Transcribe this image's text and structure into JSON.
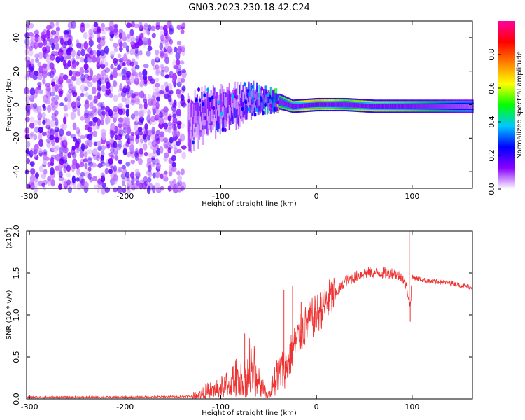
{
  "title": "GN03.2023.230.18.42.C24",
  "chart_data": [
    {
      "type": "heatmap",
      "xlabel": "Height of straight line (km)",
      "ylabel": "Frequency (Hz)",
      "xlim": [
        -303,
        163
      ],
      "ylim": [
        -50,
        50
      ],
      "xticks": [
        -300,
        -200,
        -100,
        0,
        100
      ],
      "yticks": [
        -40,
        -20,
        0,
        20,
        40
      ],
      "colorbar": {
        "label": "Normalized spectral amplitude",
        "range": [
          0,
          1
        ],
        "ticks": [
          "0.0",
          "0.2",
          "0.4",
          "0.6",
          "0.8"
        ],
        "tick_values": [
          0.0,
          0.2,
          0.4,
          0.6,
          0.8
        ],
        "colormap": [
          "#ffffff",
          "#8a00ff",
          "#0000ff",
          "#00c8ff",
          "#00ff00",
          "#ffff00",
          "#ff8000",
          "#ff0000",
          "#ff00a0"
        ]
      },
      "noise_region": {
        "x_range": [
          -303,
          -138
        ],
        "amplitude": 0.1
      },
      "ridge": [
        {
          "x": -135,
          "freq": -12,
          "amplitude": 0.2,
          "bandwidth": 14
        },
        {
          "x": -120,
          "freq": -6,
          "amplitude": 0.22,
          "bandwidth": 14
        },
        {
          "x": -100,
          "freq": -3,
          "amplitude": 0.25,
          "bandwidth": 12
        },
        {
          "x": -80,
          "freq": 0,
          "amplitude": 0.3,
          "bandwidth": 10
        },
        {
          "x": -60,
          "freq": 4,
          "amplitude": 0.45,
          "bandwidth": 8
        },
        {
          "x": -40,
          "freq": 2,
          "amplitude": 0.7,
          "bandwidth": 6
        },
        {
          "x": -25,
          "freq": -1,
          "amplitude": 0.8,
          "bandwidth": 5
        },
        {
          "x": 0,
          "freq": 0,
          "amplitude": 0.95,
          "bandwidth": 5
        },
        {
          "x": 30,
          "freq": 0,
          "amplitude": 0.75,
          "bandwidth": 5
        },
        {
          "x": 60,
          "freq": -1,
          "amplitude": 0.85,
          "bandwidth": 5
        },
        {
          "x": 90,
          "freq": -1,
          "amplitude": 0.8,
          "bandwidth": 5
        },
        {
          "x": 120,
          "freq": -1,
          "amplitude": 0.7,
          "bandwidth": 5
        },
        {
          "x": 163,
          "freq": -1,
          "amplitude": 0.5,
          "bandwidth": 5
        }
      ]
    },
    {
      "type": "line",
      "xlabel": "Height of straight line (km)",
      "ylabel": "SNR (10 * v/v)",
      "multiplier_label": "(x10",
      "multiplier_exponent": "4",
      "xlim": [
        -303,
        163
      ],
      "ylim": [
        0,
        2.0
      ],
      "xticks": [
        -300,
        -200,
        -100,
        0,
        100
      ],
      "yticks": [
        "0.0",
        "0.5",
        "1.0",
        "1.5",
        "2.0"
      ],
      "ytick_values": [
        0.0,
        0.5,
        1.0,
        1.5,
        2.0
      ],
      "color": "#ee3333",
      "series": [
        {
          "x": [
            -303,
            -200,
            -130,
            -120,
            -100,
            -80,
            -70,
            -60,
            -50,
            -40,
            -30,
            -25,
            -20,
            -10,
            0,
            10,
            20,
            30,
            40,
            50,
            60,
            70,
            80,
            90,
            95,
            98,
            100,
            110,
            120,
            140,
            163
          ],
          "values": [
            0.02,
            0.02,
            0.03,
            0.06,
            0.12,
            0.2,
            0.3,
            0.2,
            0.05,
            0.3,
            0.4,
            0.6,
            0.7,
            0.9,
            1.0,
            1.15,
            1.25,
            1.4,
            1.45,
            1.5,
            1.5,
            1.5,
            1.5,
            1.45,
            1.3,
            1.1,
            1.45,
            1.42,
            1.4,
            1.38,
            1.33
          ]
        }
      ],
      "spikes": [
        {
          "x": -75,
          "value": 0.78
        },
        {
          "x": -34,
          "value": 1.3
        },
        {
          "x": -25,
          "value": 1.35
        },
        {
          "x": -16,
          "value": 1.15
        },
        {
          "x": 97,
          "value": 2.0
        },
        {
          "x": 98,
          "value": 0.92
        }
      ]
    }
  ]
}
